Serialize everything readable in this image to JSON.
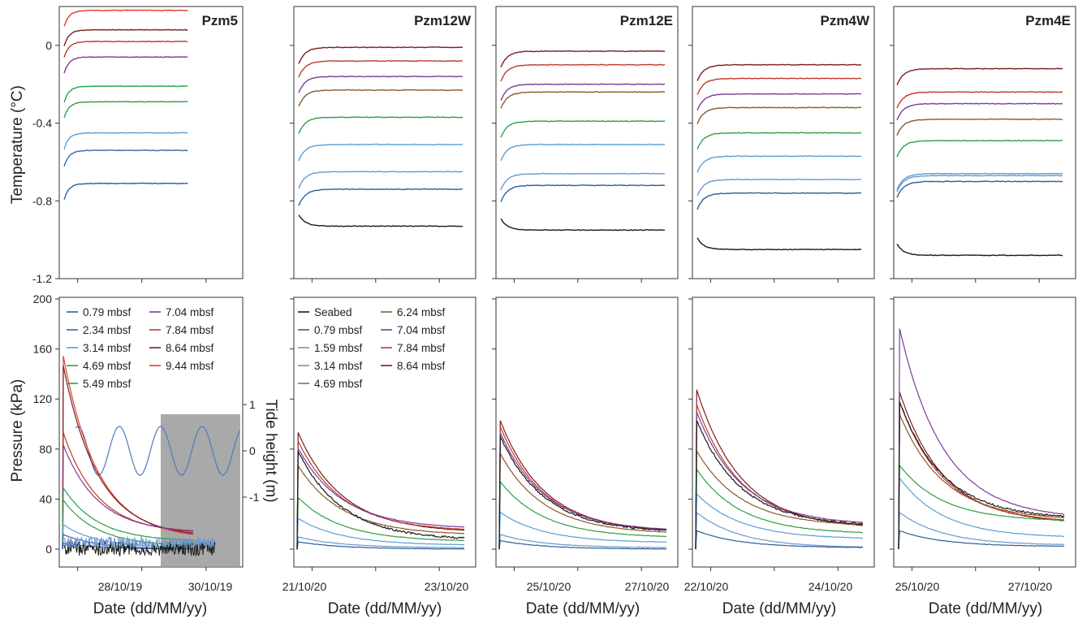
{
  "figure": {
    "x_axis_title": "Date (dd/MM/yy)",
    "temp_axis_title": "Temperature (°C)",
    "pressure_axis_title": "Pressure (kPa)",
    "tide_axis_title": "Tide height (m)"
  },
  "colors": {
    "seabed": "#1a1a1a",
    "0.79": "#2e5f96",
    "1.59": "#6e97d2",
    "2.34": "#3569a8",
    "3.14": "#5a9fd4",
    "4.69": "#2f9e44",
    "5.49": "#22a34a",
    "6.24": "#8a5a2b",
    "7.04": "#7d3c98",
    "7.84": "#c0392b",
    "8.64": "#7b1e1e",
    "9.44": "#e8392a",
    "tide": "#4a7cc0",
    "shade": "#9a9a9a"
  },
  "legends": {
    "pzm5": [
      [
        "0.79 mbsf",
        "7.04 mbsf"
      ],
      [
        "2.34 mbsf",
        "7.84 mbsf"
      ],
      [
        "3.14 mbsf",
        "8.64 mbsf"
      ],
      [
        "4.69 mbsf",
        "9.44 mbsf"
      ],
      [
        "5.49 mbsf",
        ""
      ]
    ],
    "pzm12w": [
      [
        "Seabed",
        "6.24 mbsf"
      ],
      [
        "0.79 mbsf",
        "7.04 mbsf"
      ],
      [
        "1.59 mbsf",
        "7.84 mbsf"
      ],
      [
        "3.14 mbsf",
        "8.64 mbsf"
      ],
      [
        "4.69 mbsf",
        ""
      ]
    ]
  },
  "chart_data": [
    {
      "type": "line",
      "panel": "Pzm5",
      "title": "Pzm5",
      "temperature": {
        "ylabel": "Temperature (°C)",
        "ylim": [
          -1.2,
          0.2
        ],
        "yticks": [
          "0",
          "-0.4",
          "-0.8",
          "-1.2"
        ],
        "series": [
          {
            "name": "9.44 mbsf",
            "final": 0.18
          },
          {
            "name": "8.64 mbsf",
            "final": 0.08
          },
          {
            "name": "7.84 mbsf",
            "final": 0.02
          },
          {
            "name": "7.04 mbsf",
            "final": -0.06
          },
          {
            "name": "5.49 mbsf",
            "final": -0.21
          },
          {
            "name": "4.69 mbsf",
            "final": -0.29
          },
          {
            "name": "3.14 mbsf",
            "final": -0.45
          },
          {
            "name": "2.34 mbsf",
            "final": -0.54
          },
          {
            "name": "0.79 mbsf",
            "final": -0.71
          }
        ]
      },
      "pressure": {
        "ylabel": "Pressure (kPa)",
        "ylim": [
          0,
          200
        ],
        "yticks": [
          "200",
          "160",
          "120",
          "80",
          "40",
          "0"
        ],
        "series": [
          {
            "name": "9.44 mbsf",
            "start": 158,
            "end": 8
          },
          {
            "name": "8.64 mbsf",
            "start": 150,
            "end": 9
          },
          {
            "name": "7.84 mbsf",
            "start": 95,
            "end": 12
          },
          {
            "name": "7.04 mbsf",
            "start": 85,
            "end": 13
          },
          {
            "name": "5.49 mbsf",
            "start": 50,
            "end": 6
          },
          {
            "name": "4.69 mbsf",
            "start": 40,
            "end": 2
          },
          {
            "name": "3.14 mbsf",
            "start": 20,
            "end": 1
          },
          {
            "name": "2.34 mbsf",
            "start": 12,
            "end": 0
          },
          {
            "name": "0.79 mbsf",
            "start": 5,
            "end": 0
          }
        ]
      },
      "tide": {
        "ylabel": "Tide height (m)",
        "yticks": [
          "1",
          "0",
          "-1"
        ],
        "amplitude_m": 0.7
      },
      "xticks": [
        "28/10/19",
        "30/10/19"
      ]
    },
    {
      "type": "line",
      "panel": "Pzm12W",
      "title": "Pzm12W",
      "temperature": {
        "series": [
          {
            "name": "8.64 mbsf",
            "final": -0.01
          },
          {
            "name": "7.84 mbsf",
            "final": -0.08
          },
          {
            "name": "7.04 mbsf",
            "final": -0.16
          },
          {
            "name": "6.24 mbsf",
            "final": -0.23
          },
          {
            "name": "4.69 mbsf",
            "final": -0.37
          },
          {
            "name": "3.14 mbsf",
            "final": -0.51
          },
          {
            "name": "1.59 mbsf",
            "final": -0.65
          },
          {
            "name": "0.79 mbsf",
            "final": -0.74
          },
          {
            "name": "Seabed",
            "final": -0.93
          }
        ]
      },
      "pressure": {
        "series": [
          {
            "name": "8.64 mbsf",
            "start": 95,
            "end": 13
          },
          {
            "name": "7.84 mbsf",
            "start": 88,
            "end": 14
          },
          {
            "name": "7.04 mbsf",
            "start": 82,
            "end": 16
          },
          {
            "name": "6.24 mbsf",
            "start": 68,
            "end": 11
          },
          {
            "name": "4.69 mbsf",
            "start": 42,
            "end": 6
          },
          {
            "name": "3.14 mbsf",
            "start": 25,
            "end": 3
          },
          {
            "name": "1.59 mbsf",
            "start": 10,
            "end": 1
          },
          {
            "name": "0.79 mbsf",
            "start": 6,
            "end": 0
          },
          {
            "name": "Seabed",
            "start": 80,
            "end": 7
          }
        ]
      },
      "xticks": [
        "21/10/20",
        "23/10/20"
      ]
    },
    {
      "type": "line",
      "panel": "Pzm12E",
      "title": "Pzm12E",
      "temperature": {
        "series": [
          {
            "name": "8.64 mbsf",
            "final": -0.03
          },
          {
            "name": "7.84 mbsf",
            "final": -0.1
          },
          {
            "name": "7.04 mbsf",
            "final": -0.2
          },
          {
            "name": "6.24 mbsf",
            "final": -0.24
          },
          {
            "name": "4.69 mbsf",
            "final": -0.39
          },
          {
            "name": "3.14 mbsf",
            "final": -0.51
          },
          {
            "name": "1.59 mbsf",
            "final": -0.66
          },
          {
            "name": "0.79 mbsf",
            "final": -0.72
          },
          {
            "name": "Seabed",
            "final": -0.95
          }
        ]
      },
      "pressure": {
        "series": [
          {
            "name": "8.64 mbsf",
            "start": 105,
            "end": 13
          },
          {
            "name": "7.84 mbsf",
            "start": 100,
            "end": 13
          },
          {
            "name": "7.04 mbsf",
            "start": 95,
            "end": 14
          },
          {
            "name": "6.24 mbsf",
            "start": 78,
            "end": 12
          },
          {
            "name": "4.69 mbsf",
            "start": 55,
            "end": 9
          },
          {
            "name": "3.14 mbsf",
            "start": 30,
            "end": 5
          },
          {
            "name": "1.59 mbsf",
            "start": 12,
            "end": 1
          },
          {
            "name": "0.79 mbsf",
            "start": 7,
            "end": 0
          },
          {
            "name": "Seabed",
            "start": 92,
            "end": 13
          }
        ]
      },
      "xticks": [
        "25/10/20",
        "27/10/20"
      ]
    },
    {
      "type": "line",
      "panel": "Pzm4W",
      "title": "Pzm4W",
      "temperature": {
        "series": [
          {
            "name": "8.64 mbsf",
            "final": -0.1
          },
          {
            "name": "7.84 mbsf",
            "final": -0.17
          },
          {
            "name": "7.04 mbsf",
            "final": -0.25
          },
          {
            "name": "6.24 mbsf",
            "final": -0.32
          },
          {
            "name": "4.69 mbsf",
            "final": -0.45
          },
          {
            "name": "3.14 mbsf",
            "final": -0.57
          },
          {
            "name": "1.59 mbsf",
            "final": -0.69
          },
          {
            "name": "0.79 mbsf",
            "final": -0.76
          },
          {
            "name": "Seabed",
            "final": -1.05
          }
        ]
      },
      "pressure": {
        "series": [
          {
            "name": "8.64 mbsf",
            "start": 130,
            "end": 16
          },
          {
            "name": "7.84 mbsf",
            "start": 118,
            "end": 17
          },
          {
            "name": "7.04 mbsf",
            "start": 112,
            "end": 19
          },
          {
            "name": "6.24 mbsf",
            "start": 80,
            "end": 18
          },
          {
            "name": "4.69 mbsf",
            "start": 65,
            "end": 12
          },
          {
            "name": "3.14 mbsf",
            "start": 45,
            "end": 8
          },
          {
            "name": "1.59 mbsf",
            "start": 30,
            "end": 1
          },
          {
            "name": "0.79 mbsf",
            "start": 15,
            "end": 1
          },
          {
            "name": "Seabed",
            "start": 105,
            "end": 18
          }
        ]
      },
      "xticks": [
        "22/10/20",
        "24/10/20"
      ]
    },
    {
      "type": "line",
      "panel": "Pzm4E",
      "title": "Pzm4E",
      "temperature": {
        "series": [
          {
            "name": "8.64 mbsf",
            "final": -0.12
          },
          {
            "name": "7.84 mbsf",
            "final": -0.24
          },
          {
            "name": "7.04 mbsf",
            "final": -0.3
          },
          {
            "name": "6.24 mbsf",
            "final": -0.38
          },
          {
            "name": "4.69 mbsf",
            "final": -0.49
          },
          {
            "name": "3.14 mbsf",
            "final": -0.66
          },
          {
            "name": "1.59 mbsf",
            "final": -0.67
          },
          {
            "name": "0.79 mbsf",
            "final": -0.7
          },
          {
            "name": "Seabed",
            "final": -1.08
          }
        ]
      },
      "pressure": {
        "series": [
          {
            "name": "8.64 mbsf",
            "start": 128,
            "end": 20
          },
          {
            "name": "7.84 mbsf",
            "start": 120,
            "end": 21
          },
          {
            "name": "7.04 mbsf",
            "start": 180,
            "end": 24
          },
          {
            "name": "6.24 mbsf",
            "start": 110,
            "end": 23
          },
          {
            "name": "4.69 mbsf",
            "start": 68,
            "end": 22
          },
          {
            "name": "3.14 mbsf",
            "start": 58,
            "end": 9
          },
          {
            "name": "1.59 mbsf",
            "start": 30,
            "end": 3
          },
          {
            "name": "0.79 mbsf",
            "start": 15,
            "end": 2
          },
          {
            "name": "Seabed",
            "start": 120,
            "end": 24
          }
        ]
      },
      "xticks": [
        "25/10/20",
        "27/10/20"
      ]
    }
  ]
}
